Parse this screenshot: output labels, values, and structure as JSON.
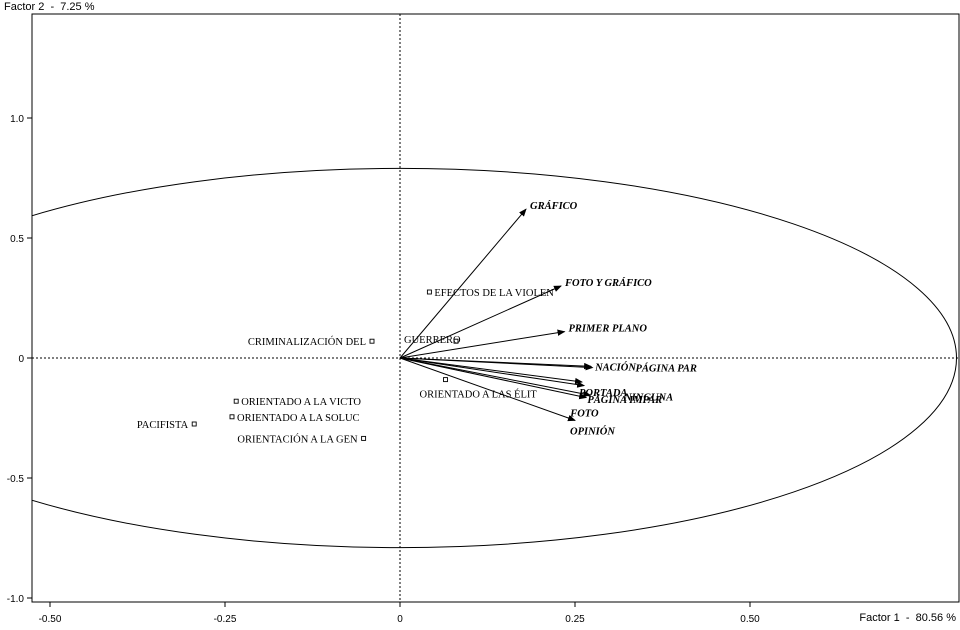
{
  "chart_data": {
    "type": "scatter",
    "subtype": "correspondence-factor-map",
    "x_axis_title": "Factor 1  -  80.56 %",
    "y_axis_title": "Factor 2  -  7.25 %",
    "xlim": [
      -0.53,
      0.8
    ],
    "ylim": [
      -1.02,
      1.4
    ],
    "x_ticks": [
      {
        "value": -0.5,
        "label": "-0.50"
      },
      {
        "value": -0.25,
        "label": "-0.25"
      },
      {
        "value": 0,
        "label": "0"
      },
      {
        "value": 0.25,
        "label": "0.25"
      },
      {
        "value": 0.5,
        "label": "0.50"
      }
    ],
    "y_ticks": [
      {
        "value": 1.0,
        "label": "1.0"
      },
      {
        "value": 0.5,
        "label": "0.5"
      },
      {
        "value": 0,
        "label": "0"
      },
      {
        "value": -0.5,
        "label": "-0.5"
      },
      {
        "value": -1.0,
        "label": "-1.0"
      }
    ],
    "ellipse": {
      "center": [
        0,
        0
      ],
      "rx": 0.795,
      "ry": 0.79
    },
    "vectors": [
      {
        "label": "GRÁFICO",
        "x": 0.18,
        "y": 0.62
      },
      {
        "label": "FOTO Y GRÁFICO",
        "x": 0.23,
        "y": 0.3
      },
      {
        "label": "PRIMER PLANO",
        "x": 0.235,
        "y": 0.11
      },
      {
        "label": "NACIÓN",
        "x": 0.273,
        "y": -0.035
      },
      {
        "label": "PÁGINA PAR",
        "x": 0.275,
        "y": -0.04
      },
      {
        "label": "PORTADA",
        "x": 0.26,
        "y": -0.1
      },
      {
        "label": "NINGUNA",
        "x": 0.263,
        "y": -0.115
      },
      {
        "label": "PÁGINA IMPAR",
        "x": 0.272,
        "y": -0.155
      },
      {
        "label": "FOTO",
        "x": 0.266,
        "y": -0.165
      },
      {
        "label": "OPINIÓN",
        "x": 0.25,
        "y": -0.26
      }
    ],
    "supplementary_points": [
      {
        "label": "EFECTOS DE LA VIOLEN",
        "x": 0.042,
        "y": 0.275
      },
      {
        "label": "GUERRERO",
        "x": 0.08,
        "y": 0.07
      },
      {
        "label": "CRIMINALIZACIÓN DEL",
        "x": -0.04,
        "y": 0.07
      },
      {
        "label": "ORIENTADO A LAS ÉLIT",
        "x": 0.065,
        "y": -0.09
      },
      {
        "label": "ORIENTADO A LA VICTO",
        "x": -0.234,
        "y": -0.18
      },
      {
        "label": "ORIENTADO A LA SOLUC",
        "x": -0.24,
        "y": -0.245
      },
      {
        "label": "PACIFISTA",
        "x": -0.294,
        "y": -0.275
      },
      {
        "label": "ORIENTACIÓN A LA GEN",
        "x": -0.052,
        "y": -0.335
      }
    ],
    "grid": false
  }
}
